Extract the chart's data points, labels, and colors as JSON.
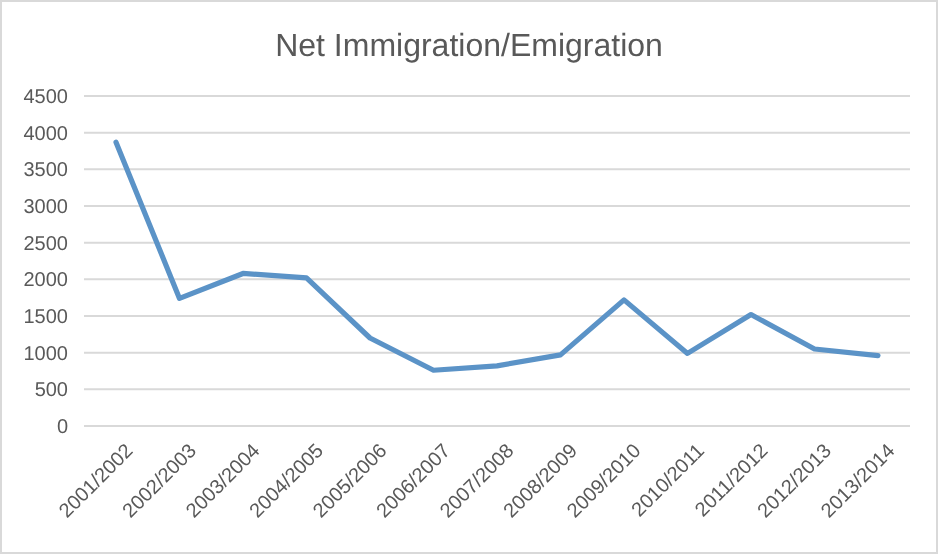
{
  "chart_data": {
    "type": "line",
    "title": "Net Immigration/Emigration",
    "categories": [
      "2001/2002",
      "2002/2003",
      "2003/2004",
      "2004/2005",
      "2005/2006",
      "2006/2007",
      "2007/2008",
      "2008/2009",
      "2009/2010",
      "2010/2011",
      "2011/2012",
      "2012/2013",
      "2013/2014"
    ],
    "series": [
      {
        "color": "#5b93c7",
        "values": [
          3870,
          1740,
          2080,
          2020,
          1200,
          760,
          820,
          970,
          1720,
          990,
          1520,
          1050,
          960
        ]
      }
    ],
    "ylim": [
      0,
      4500
    ],
    "yticks": [
      0,
      500,
      1000,
      1500,
      2000,
      2500,
      3000,
      3500,
      4000,
      4500
    ],
    "grid": "y",
    "marker": "none",
    "line_style": "solid"
  }
}
